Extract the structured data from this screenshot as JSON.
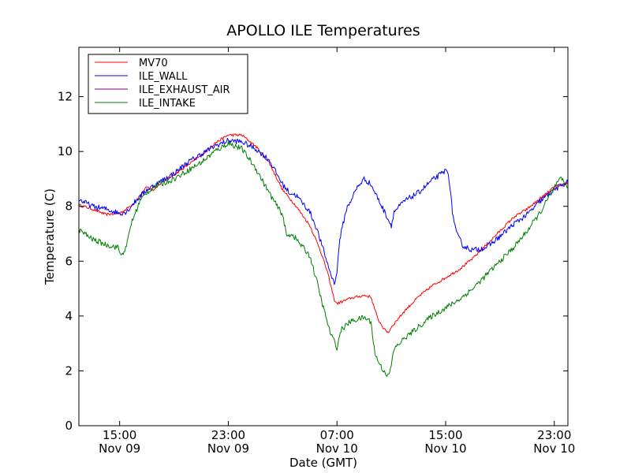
{
  "chart_data": {
    "type": "line",
    "title": "APOLLO ILE Temperatures",
    "xlabel": "Date (GMT)",
    "ylabel": "Temperature (C)",
    "x_unit": "hours from Nov 09 12:00 GMT",
    "xlim": [
      0,
      36
    ],
    "ylim": [
      0,
      13.8
    ],
    "grid": false,
    "legend_position": "top-left",
    "x_ticks": [
      {
        "x": 3,
        "time": "15:00",
        "date": "Nov 09"
      },
      {
        "x": 11,
        "time": "23:00",
        "date": "Nov 09"
      },
      {
        "x": 19,
        "time": "07:00",
        "date": "Nov 10"
      },
      {
        "x": 27,
        "time": "15:00",
        "date": "Nov 10"
      },
      {
        "x": 35,
        "time": "23:00",
        "date": "Nov 10"
      }
    ],
    "y_ticks": [
      0,
      2,
      4,
      6,
      8,
      10,
      12
    ],
    "series": [
      {
        "name": "MV70",
        "color": "#ff0000",
        "noise": 0.05,
        "points": [
          [
            0,
            8.05
          ],
          [
            1,
            7.9
          ],
          [
            2,
            7.7
          ],
          [
            3,
            7.75
          ],
          [
            3.5,
            7.9
          ],
          [
            4,
            8.1
          ],
          [
            5,
            8.7
          ],
          [
            5.5,
            8.6
          ],
          [
            6,
            8.85
          ],
          [
            7,
            9.15
          ],
          [
            8,
            9.5
          ],
          [
            9,
            9.85
          ],
          [
            10,
            10.3
          ],
          [
            11,
            10.6
          ],
          [
            12,
            10.6
          ],
          [
            13,
            10.2
          ],
          [
            14,
            9.6
          ],
          [
            15,
            8.6
          ],
          [
            16,
            8.0
          ],
          [
            17,
            7.3
          ],
          [
            17.7,
            6.5
          ],
          [
            18.3,
            5.6
          ],
          [
            18.8,
            4.6
          ],
          [
            19,
            4.45
          ],
          [
            20,
            4.65
          ],
          [
            21,
            4.75
          ],
          [
            21.5,
            4.7
          ],
          [
            22,
            3.9
          ],
          [
            22.5,
            3.5
          ],
          [
            22.8,
            3.4
          ],
          [
            23,
            3.6
          ],
          [
            24,
            4.2
          ],
          [
            25,
            4.7
          ],
          [
            26,
            5.1
          ],
          [
            27,
            5.4
          ],
          [
            28,
            5.7
          ],
          [
            29,
            6.1
          ],
          [
            30,
            6.6
          ],
          [
            31,
            7.1
          ],
          [
            32,
            7.6
          ],
          [
            33,
            7.9
          ],
          [
            34,
            8.3
          ],
          [
            35,
            8.7
          ],
          [
            36,
            8.85
          ]
        ]
      },
      {
        "name": "ILE_WALL",
        "color": "#0000ff",
        "noise": 0.1,
        "points": [
          [
            0,
            8.25
          ],
          [
            1,
            8.0
          ],
          [
            2,
            7.9
          ],
          [
            3,
            7.75
          ],
          [
            3.5,
            7.8
          ],
          [
            4,
            8.1
          ],
          [
            5,
            8.6
          ],
          [
            6,
            8.9
          ],
          [
            7,
            9.2
          ],
          [
            8,
            9.6
          ],
          [
            9,
            9.9
          ],
          [
            10,
            10.2
          ],
          [
            11,
            10.4
          ],
          [
            12,
            10.35
          ],
          [
            13,
            10.1
          ],
          [
            14,
            9.7
          ],
          [
            15,
            8.8
          ],
          [
            15.5,
            8.5
          ],
          [
            16,
            8.4
          ],
          [
            17,
            7.8
          ],
          [
            17.5,
            7.2
          ],
          [
            18,
            6.4
          ],
          [
            18.5,
            5.6
          ],
          [
            18.8,
            5.2
          ],
          [
            19,
            5.6
          ],
          [
            19.2,
            6.8
          ],
          [
            19.7,
            7.9
          ],
          [
            20.5,
            8.7
          ],
          [
            21,
            9.0
          ],
          [
            21.5,
            8.8
          ],
          [
            22,
            8.3
          ],
          [
            22.5,
            7.8
          ],
          [
            22.9,
            7.4
          ],
          [
            23,
            7.3
          ],
          [
            23.2,
            7.8
          ],
          [
            24,
            8.2
          ],
          [
            25,
            8.5
          ],
          [
            26,
            8.95
          ],
          [
            27,
            9.3
          ],
          [
            27.2,
            9.25
          ],
          [
            27.5,
            7.8
          ],
          [
            27.8,
            7.0
          ],
          [
            28.3,
            6.55
          ],
          [
            29,
            6.4
          ],
          [
            30,
            6.5
          ],
          [
            31,
            6.9
          ],
          [
            32,
            7.35
          ],
          [
            33,
            7.7
          ],
          [
            34,
            8.2
          ],
          [
            35,
            8.6
          ],
          [
            36,
            8.9
          ]
        ]
      },
      {
        "name": "ILE_EXHAUST_AIR",
        "color": "#800080",
        "noise": 0,
        "points": [
          [
            33.8,
            8.2
          ],
          [
            35,
            8.65
          ],
          [
            36,
            8.9
          ]
        ]
      },
      {
        "name": "ILE_INTAKE",
        "color": "#008000",
        "noise": 0.1,
        "points": [
          [
            0,
            7.15
          ],
          [
            1,
            6.8
          ],
          [
            2,
            6.6
          ],
          [
            2.9,
            6.5
          ],
          [
            3.1,
            6.2
          ],
          [
            3.5,
            6.5
          ],
          [
            3.8,
            7.3
          ],
          [
            4.5,
            8.2
          ],
          [
            5,
            8.5
          ],
          [
            5.5,
            8.7
          ],
          [
            6,
            8.8
          ],
          [
            7,
            9.0
          ],
          [
            8,
            9.3
          ],
          [
            9,
            9.6
          ],
          [
            10,
            10.0
          ],
          [
            11,
            10.3
          ],
          [
            12,
            10.1
          ],
          [
            13,
            9.4
          ],
          [
            14,
            8.5
          ],
          [
            14.6,
            8.0
          ],
          [
            15,
            7.7
          ],
          [
            15.3,
            6.9
          ],
          [
            15.7,
            7.0
          ],
          [
            16,
            6.8
          ],
          [
            17,
            6.2
          ],
          [
            17.5,
            5.3
          ],
          [
            18,
            4.3
          ],
          [
            18.5,
            3.4
          ],
          [
            19,
            2.85
          ],
          [
            19.3,
            3.5
          ],
          [
            20,
            3.8
          ],
          [
            21,
            3.95
          ],
          [
            21.5,
            3.8
          ],
          [
            21.8,
            2.6
          ],
          [
            22.3,
            2.1
          ],
          [
            22.8,
            1.8
          ],
          [
            23,
            2.2
          ],
          [
            23.2,
            2.8
          ],
          [
            24,
            3.2
          ],
          [
            25,
            3.6
          ],
          [
            26,
            4.0
          ],
          [
            27,
            4.3
          ],
          [
            28,
            4.6
          ],
          [
            29,
            5.0
          ],
          [
            30,
            5.5
          ],
          [
            31,
            6.0
          ],
          [
            32,
            6.5
          ],
          [
            33,
            7.1
          ],
          [
            34,
            7.8
          ],
          [
            35,
            8.7
          ],
          [
            35.5,
            9.0
          ],
          [
            36,
            8.7
          ]
        ]
      }
    ]
  }
}
